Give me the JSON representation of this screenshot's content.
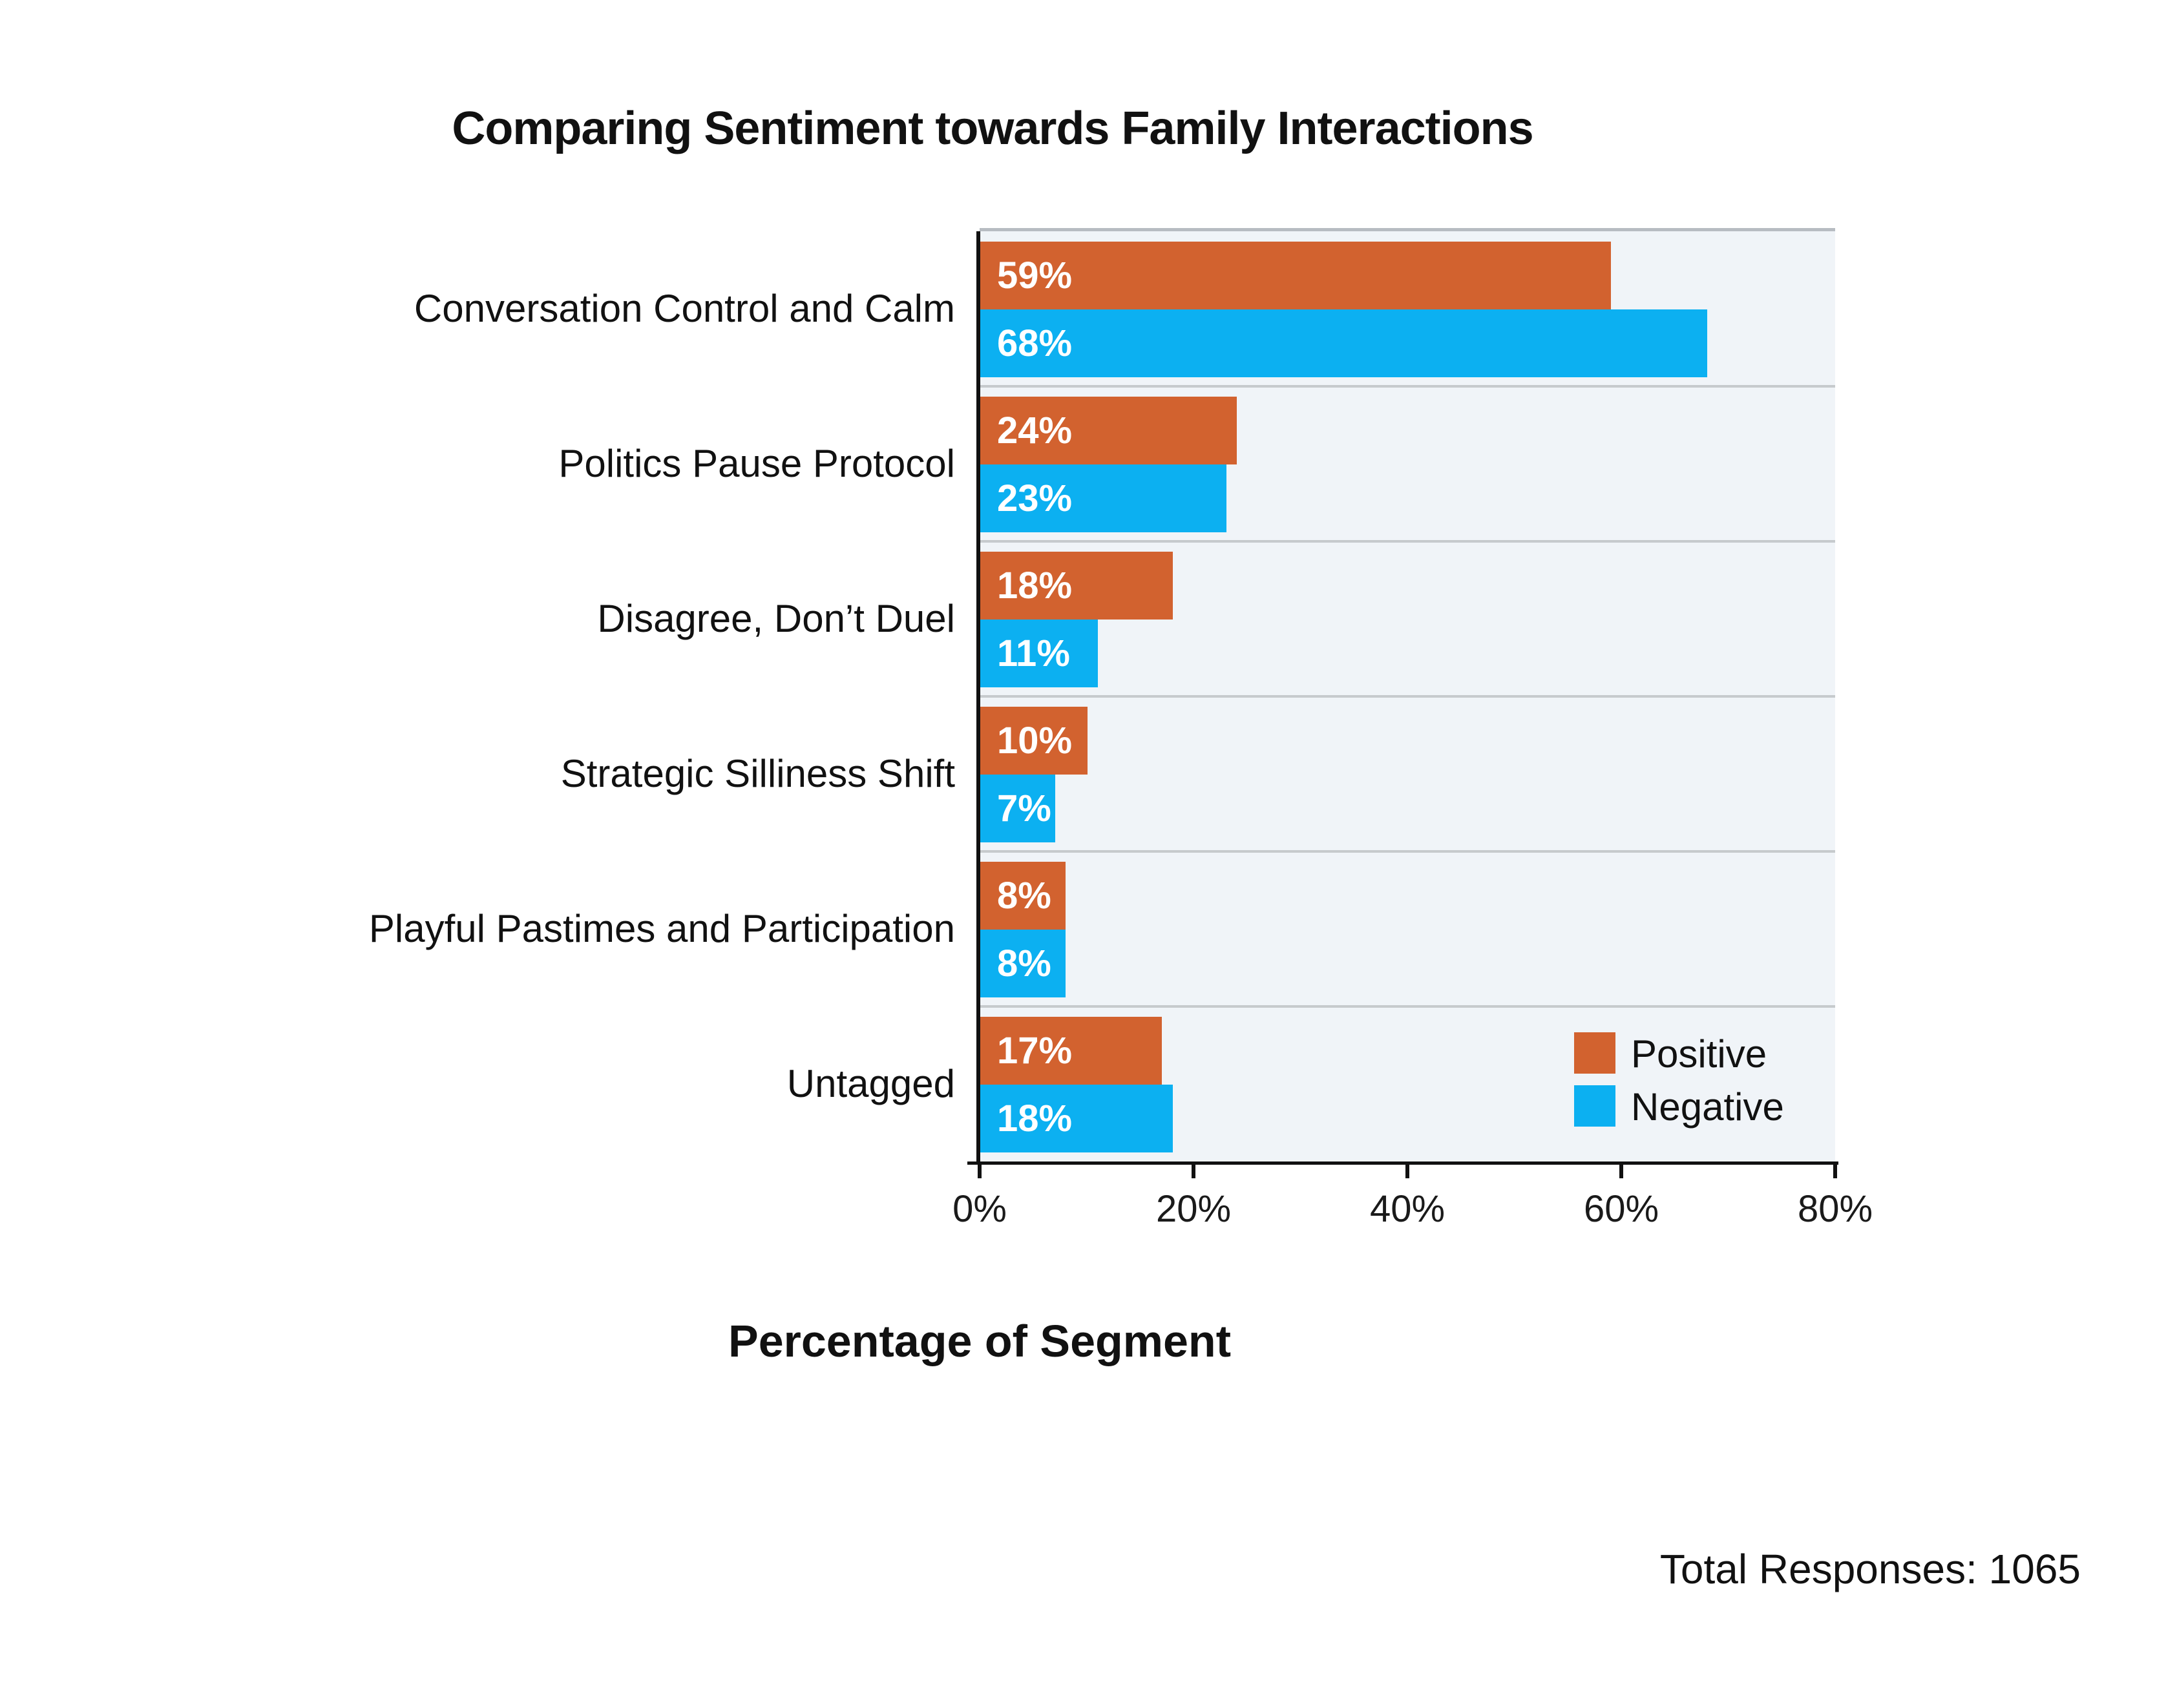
{
  "title": "Comparing Sentiment towards Family Interactions",
  "x_axis_title": "Percentage of Segment",
  "footer": "Total Responses: 1065",
  "legend": {
    "items": [
      {
        "label": "Positive",
        "color": "#d2622f"
      },
      {
        "label": "Negative",
        "color": "#0cb0f1"
      }
    ]
  },
  "chart_data": {
    "type": "bar",
    "orientation": "horizontal",
    "title": "Comparing Sentiment towards Family Interactions",
    "xlabel": "Percentage of Segment",
    "xlim": [
      0,
      80
    ],
    "x_tick_values": [
      0,
      20,
      40,
      60,
      80
    ],
    "x_tick_labels": [
      "0%",
      "20%",
      "40%",
      "60%",
      "80%"
    ],
    "grid": "horizontal-category-separators",
    "plot_background": "#f0f4f8",
    "legend_position": "inside-bottom-right",
    "bar_value_label_format": "percent",
    "categories": [
      "Conversation Control and Calm",
      "Politics Pause Protocol",
      "Disagree, Don’t Duel",
      "Strategic Silliness Shift",
      "Playful Pastimes and Participation",
      "Untagged"
    ],
    "series": [
      {
        "name": "Positive",
        "color": "#d2622f",
        "values": [
          59,
          24,
          18,
          10,
          8,
          17
        ]
      },
      {
        "name": "Negative",
        "color": "#0cb0f1",
        "values": [
          68,
          23,
          11,
          7,
          8,
          18
        ]
      }
    ],
    "total_responses": 1065
  }
}
